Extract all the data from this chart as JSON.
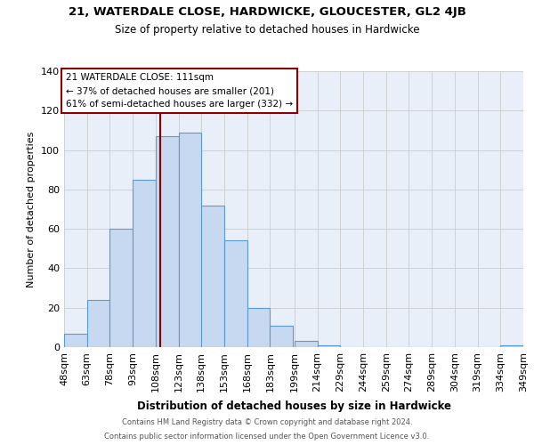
{
  "title": "21, WATERDALE CLOSE, HARDWICKE, GLOUCESTER, GL2 4JB",
  "subtitle": "Size of property relative to detached houses in Hardwicke",
  "xlabel": "Distribution of detached houses by size in Hardwicke",
  "ylabel": "Number of detached properties",
  "bar_color": "#c6d9f0",
  "bar_edge_color": "#5b9bd5",
  "background_color": "#e8eff8",
  "grid_color": "#cccccc",
  "bins": [
    48,
    63,
    78,
    93,
    108,
    123,
    138,
    153,
    168,
    183,
    199,
    214,
    229,
    244,
    259,
    274,
    289,
    304,
    319,
    334,
    349
  ],
  "counts": [
    7,
    24,
    60,
    85,
    107,
    109,
    72,
    54,
    20,
    11,
    3,
    1,
    0,
    0,
    0,
    0,
    0,
    0,
    0,
    1
  ],
  "tick_labels": [
    "48sqm",
    "63sqm",
    "78sqm",
    "93sqm",
    "108sqm",
    "123sqm",
    "138sqm",
    "153sqm",
    "168sqm",
    "183sqm",
    "199sqm",
    "214sqm",
    "229sqm",
    "244sqm",
    "259sqm",
    "274sqm",
    "289sqm",
    "304sqm",
    "319sqm",
    "334sqm",
    "349sqm"
  ],
  "property_line_x": 111,
  "property_line_color": "#8b0000",
  "annotation_title": "21 WATERDALE CLOSE: 111sqm",
  "annotation_line1": "← 37% of detached houses are smaller (201)",
  "annotation_line2": "61% of semi-detached houses are larger (332) →",
  "annotation_box_edge_color": "#8b0000",
  "ylim": [
    0,
    140
  ],
  "yticks": [
    0,
    20,
    40,
    60,
    80,
    100,
    120,
    140
  ],
  "footer1": "Contains HM Land Registry data © Crown copyright and database right 2024.",
  "footer2": "Contains public sector information licensed under the Open Government Licence v3.0."
}
